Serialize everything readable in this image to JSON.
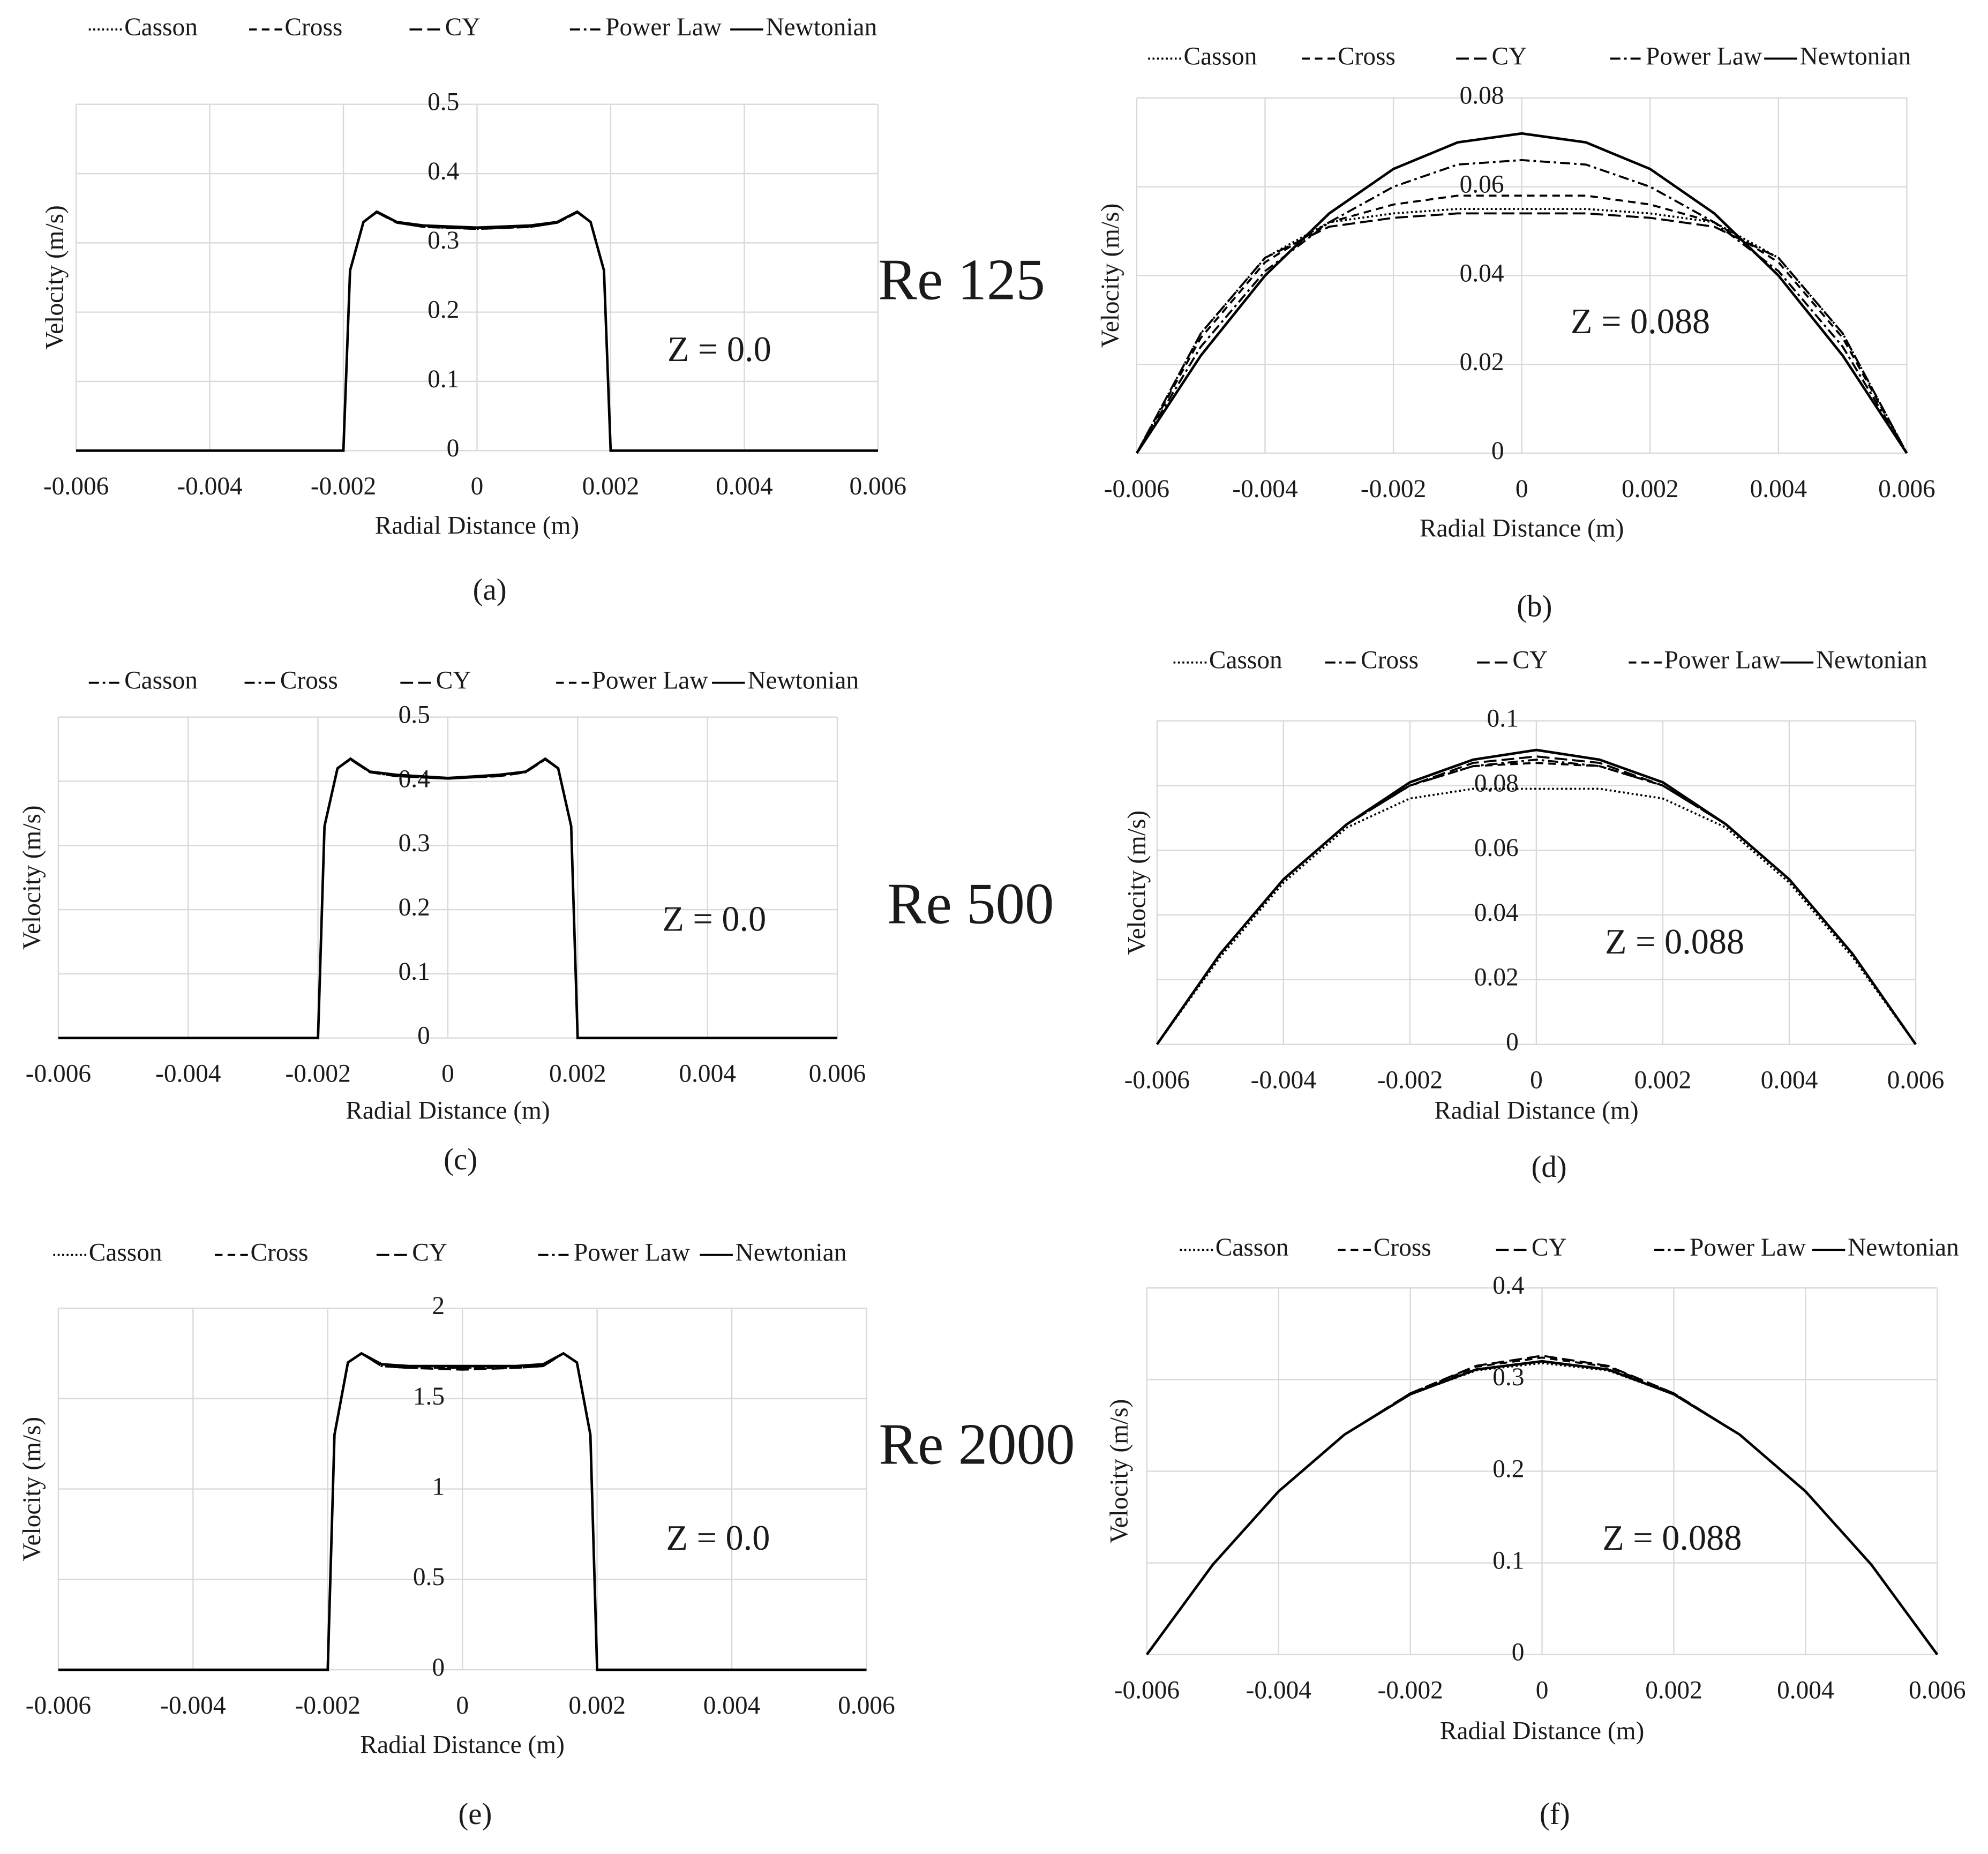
{
  "row_labels": [
    "Re 125",
    "Re 500",
    "Re 2000"
  ],
  "chart_data": [
    {
      "type": "line",
      "caption": "(a)",
      "annotation": "Z = 0.0",
      "x_label": "Radial Distance (m)",
      "y_label": "Velocity (m/s)",
      "x": [
        -0.006,
        -0.002,
        -0.0019,
        -0.0017,
        -0.0015,
        -0.0012,
        -0.0008,
        0,
        0.0008,
        0.0012,
        0.0015,
        0.0017,
        0.0019,
        0.002,
        0.006
      ],
      "series": [
        {
          "name": "Casson",
          "color": "#000000",
          "dash": "dotted",
          "values": [
            0,
            0,
            0.26,
            0.33,
            0.344,
            0.329,
            0.323,
            0.32,
            0.323,
            0.329,
            0.344,
            0.33,
            0.26,
            0,
            0
          ]
        },
        {
          "name": "Cross",
          "color": "#000000",
          "dash": "dashed",
          "values": [
            0,
            0,
            0.26,
            0.33,
            0.344,
            0.329,
            0.323,
            0.321,
            0.323,
            0.329,
            0.344,
            0.33,
            0.26,
            0,
            0
          ]
        },
        {
          "name": "CY",
          "color": "#000000",
          "dash": "longdash",
          "values": [
            0,
            0,
            0.26,
            0.33,
            0.344,
            0.329,
            0.323,
            0.32,
            0.323,
            0.329,
            0.344,
            0.33,
            0.26,
            0,
            0
          ]
        },
        {
          "name": "Power Law",
          "color": "#000000",
          "dash": "dashdot",
          "values": [
            0,
            0,
            0.26,
            0.33,
            0.345,
            0.33,
            0.324,
            0.321,
            0.324,
            0.33,
            0.345,
            0.33,
            0.26,
            0,
            0
          ]
        },
        {
          "name": "Newtonian",
          "color": "#000000",
          "dash": "solid",
          "values": [
            0,
            0,
            0.26,
            0.33,
            0.345,
            0.33,
            0.325,
            0.322,
            0.325,
            0.33,
            0.345,
            0.33,
            0.26,
            0,
            0
          ]
        }
      ],
      "xlim": [
        -0.006,
        0.006
      ],
      "ylim": [
        0,
        0.5
      ],
      "xticks": [
        -0.006,
        -0.004,
        -0.002,
        0,
        0.002,
        0.004,
        0.006
      ],
      "yticks": [
        0,
        0.1,
        0.2,
        0.3,
        0.4,
        0.5
      ],
      "grid": true
    },
    {
      "type": "line",
      "caption": "(b)",
      "annotation": "Z = 0.088",
      "x_label": "Radial Distance (m)",
      "y_label": "Velocity (m/s)",
      "x": [
        -0.006,
        -0.005,
        -0.004,
        -0.003,
        -0.002,
        -0.001,
        0,
        0.001,
        0.002,
        0.003,
        0.004,
        0.005,
        0.006
      ],
      "series": [
        {
          "name": "Casson",
          "color": "#000000",
          "dash": "dotted",
          "values": [
            0,
            0.027,
            0.044,
            0.052,
            0.054,
            0.055,
            0.055,
            0.055,
            0.054,
            0.052,
            0.044,
            0.027,
            0
          ]
        },
        {
          "name": "Cross",
          "color": "#000000",
          "dash": "dashed",
          "values": [
            0,
            0.026,
            0.043,
            0.052,
            0.056,
            0.058,
            0.058,
            0.058,
            0.056,
            0.052,
            0.043,
            0.026,
            0
          ]
        },
        {
          "name": "CY",
          "color": "#000000",
          "dash": "longdash",
          "values": [
            0,
            0.027,
            0.044,
            0.051,
            0.053,
            0.054,
            0.054,
            0.054,
            0.053,
            0.051,
            0.044,
            0.027,
            0
          ]
        },
        {
          "name": "Power Law",
          "color": "#000000",
          "dash": "dashdot",
          "values": [
            0,
            0.024,
            0.041,
            0.052,
            0.06,
            0.065,
            0.066,
            0.065,
            0.06,
            0.052,
            0.041,
            0.024,
            0
          ]
        },
        {
          "name": "Newtonian",
          "color": "#000000",
          "dash": "solid",
          "values": [
            0,
            0.022,
            0.04,
            0.054,
            0.064,
            0.07,
            0.072,
            0.07,
            0.064,
            0.054,
            0.04,
            0.022,
            0
          ]
        }
      ],
      "xlim": [
        -0.006,
        0.006
      ],
      "ylim": [
        0,
        0.08
      ],
      "xticks": [
        -0.006,
        -0.004,
        -0.002,
        0,
        0.002,
        0.004,
        0.006
      ],
      "yticks": [
        0,
        0.02,
        0.04,
        0.06,
        0.08
      ],
      "grid": true
    },
    {
      "type": "line",
      "caption": "(c)",
      "annotation": "Z = 0.0",
      "x_label": "Radial Distance (m)",
      "y_label": "Velocity (m/s)",
      "x": [
        -0.006,
        -0.002,
        -0.0019,
        -0.0017,
        -0.0015,
        -0.0012,
        -0.0008,
        0,
        0.0008,
        0.0012,
        0.0015,
        0.0017,
        0.0019,
        0.002,
        0.006
      ],
      "series": [
        {
          "name": "Casson",
          "color": "#000000",
          "dash": "dashdot",
          "values": [
            0,
            0,
            0.33,
            0.42,
            0.434,
            0.414,
            0.408,
            0.404,
            0.408,
            0.414,
            0.434,
            0.42,
            0.33,
            0,
            0
          ]
        },
        {
          "name": "Cross",
          "color": "#000000",
          "dash": "dashdot",
          "values": [
            0,
            0,
            0.33,
            0.42,
            0.434,
            0.414,
            0.409,
            0.404,
            0.409,
            0.414,
            0.434,
            0.42,
            0.33,
            0,
            0
          ]
        },
        {
          "name": "CY",
          "color": "#000000",
          "dash": "longdash",
          "values": [
            0,
            0,
            0.33,
            0.42,
            0.434,
            0.414,
            0.408,
            0.404,
            0.408,
            0.414,
            0.434,
            0.42,
            0.33,
            0,
            0
          ]
        },
        {
          "name": "Power Law",
          "color": "#000000",
          "dash": "dashed",
          "values": [
            0,
            0,
            0.33,
            0.42,
            0.435,
            0.415,
            0.409,
            0.405,
            0.409,
            0.415,
            0.435,
            0.42,
            0.33,
            0,
            0
          ]
        },
        {
          "name": "Newtonian",
          "color": "#000000",
          "dash": "solid",
          "values": [
            0,
            0,
            0.33,
            0.42,
            0.435,
            0.415,
            0.41,
            0.405,
            0.41,
            0.415,
            0.435,
            0.42,
            0.33,
            0,
            0
          ]
        }
      ],
      "xlim": [
        -0.006,
        0.006
      ],
      "ylim": [
        0,
        0.5
      ],
      "xticks": [
        -0.006,
        -0.004,
        -0.002,
        0,
        0.002,
        0.004,
        0.006
      ],
      "yticks": [
        0,
        0.1,
        0.2,
        0.3,
        0.4,
        0.5
      ],
      "grid": true
    },
    {
      "type": "line",
      "caption": "(d)",
      "annotation": "Z = 0.088",
      "x_label": "Radial Distance (m)",
      "y_label": "Velocity (m/s)",
      "x": [
        -0.006,
        -0.005,
        -0.004,
        -0.003,
        -0.002,
        -0.001,
        0,
        0.001,
        0.002,
        0.003,
        0.004,
        0.005,
        0.006
      ],
      "series": [
        {
          "name": "Casson",
          "color": "#000000",
          "dash": "dotted",
          "values": [
            0,
            0.027,
            0.05,
            0.067,
            0.076,
            0.079,
            0.079,
            0.079,
            0.076,
            0.067,
            0.05,
            0.027,
            0
          ]
        },
        {
          "name": "Cross",
          "color": "#000000",
          "dash": "dashdot",
          "values": [
            0,
            0.028,
            0.051,
            0.068,
            0.08,
            0.086,
            0.088,
            0.086,
            0.08,
            0.068,
            0.051,
            0.028,
            0
          ]
        },
        {
          "name": "CY",
          "color": "#000000",
          "dash": "longdash",
          "values": [
            0,
            0.028,
            0.051,
            0.068,
            0.08,
            0.087,
            0.089,
            0.087,
            0.08,
            0.068,
            0.051,
            0.028,
            0
          ]
        },
        {
          "name": "Power Law",
          "color": "#000000",
          "dash": "dashed",
          "values": [
            0,
            0.028,
            0.051,
            0.068,
            0.08,
            0.086,
            0.087,
            0.086,
            0.08,
            0.068,
            0.051,
            0.028,
            0
          ]
        },
        {
          "name": "Newtonian",
          "color": "#000000",
          "dash": "solid",
          "values": [
            0,
            0.028,
            0.051,
            0.068,
            0.081,
            0.088,
            0.091,
            0.088,
            0.081,
            0.068,
            0.051,
            0.028,
            0
          ]
        }
      ],
      "xlim": [
        -0.006,
        0.006
      ],
      "ylim": [
        0,
        0.1
      ],
      "xticks": [
        -0.006,
        -0.004,
        -0.002,
        0,
        0.002,
        0.004,
        0.006
      ],
      "yticks": [
        0,
        0.02,
        0.04,
        0.06,
        0.08,
        0.1
      ],
      "grid": true
    },
    {
      "type": "line",
      "caption": "(e)",
      "annotation": "Z = 0.0",
      "x_label": "Radial Distance (m)",
      "y_label": "Velocity (m/s)",
      "x": [
        -0.006,
        -0.002,
        -0.0019,
        -0.0017,
        -0.0015,
        -0.0012,
        -0.0008,
        0,
        0.0008,
        0.0012,
        0.0015,
        0.0017,
        0.0019,
        0.002,
        0.006
      ],
      "series": [
        {
          "name": "Casson",
          "color": "#000000",
          "dash": "dotted",
          "values": [
            0,
            0,
            1.3,
            1.7,
            1.75,
            1.68,
            1.67,
            1.67,
            1.67,
            1.68,
            1.75,
            1.7,
            1.3,
            0,
            0
          ]
        },
        {
          "name": "Cross",
          "color": "#000000",
          "dash": "dashed",
          "values": [
            0,
            0,
            1.3,
            1.7,
            1.75,
            1.68,
            1.67,
            1.67,
            1.67,
            1.68,
            1.75,
            1.7,
            1.3,
            0,
            0
          ]
        },
        {
          "name": "CY",
          "color": "#000000",
          "dash": "longdash",
          "values": [
            0,
            0,
            1.3,
            1.7,
            1.75,
            1.68,
            1.67,
            1.66,
            1.67,
            1.68,
            1.75,
            1.7,
            1.3,
            0,
            0
          ]
        },
        {
          "name": "Power Law",
          "color": "#000000",
          "dash": "dashdot",
          "values": [
            0,
            0,
            1.3,
            1.7,
            1.75,
            1.69,
            1.68,
            1.67,
            1.68,
            1.69,
            1.75,
            1.7,
            1.3,
            0,
            0
          ]
        },
        {
          "name": "Newtonian",
          "color": "#000000",
          "dash": "solid",
          "values": [
            0,
            0,
            1.3,
            1.7,
            1.75,
            1.69,
            1.68,
            1.68,
            1.68,
            1.69,
            1.75,
            1.7,
            1.3,
            0,
            0
          ]
        }
      ],
      "xlim": [
        -0.006,
        0.006
      ],
      "ylim": [
        0,
        2
      ],
      "xticks": [
        -0.006,
        -0.004,
        -0.002,
        0,
        0.002,
        0.004,
        0.006
      ],
      "yticks": [
        0,
        0.5,
        1,
        1.5,
        2
      ],
      "grid": true
    },
    {
      "type": "line",
      "caption": "(f)",
      "annotation": "Z = 0.088",
      "x_label": "Radial Distance (m)",
      "y_label": "Velocity (m/s)",
      "x": [
        -0.006,
        -0.005,
        -0.004,
        -0.003,
        -0.002,
        -0.001,
        0,
        0.001,
        0.002,
        0.003,
        0.004,
        0.005,
        0.006
      ],
      "series": [
        {
          "name": "Casson",
          "color": "#000000",
          "dash": "dotted",
          "values": [
            0,
            0.098,
            0.178,
            0.24,
            0.284,
            0.31,
            0.318,
            0.31,
            0.284,
            0.24,
            0.178,
            0.098,
            0
          ]
        },
        {
          "name": "Cross",
          "color": "#000000",
          "dash": "dashed",
          "values": [
            0,
            0.098,
            0.178,
            0.24,
            0.285,
            0.314,
            0.324,
            0.314,
            0.285,
            0.24,
            0.178,
            0.098,
            0
          ]
        },
        {
          "name": "CY",
          "color": "#000000",
          "dash": "longdash",
          "values": [
            0,
            0.098,
            0.178,
            0.24,
            0.285,
            0.315,
            0.326,
            0.315,
            0.285,
            0.24,
            0.178,
            0.098,
            0
          ]
        },
        {
          "name": "Power Law",
          "color": "#000000",
          "dash": "dashdot",
          "values": [
            0,
            0.098,
            0.178,
            0.24,
            0.284,
            0.311,
            0.32,
            0.311,
            0.284,
            0.24,
            0.178,
            0.098,
            0
          ]
        },
        {
          "name": "Newtonian",
          "color": "#000000",
          "dash": "solid",
          "values": [
            0,
            0.098,
            0.178,
            0.24,
            0.284,
            0.311,
            0.32,
            0.311,
            0.284,
            0.24,
            0.178,
            0.098,
            0
          ]
        }
      ],
      "xlim": [
        -0.006,
        0.006
      ],
      "ylim": [
        0,
        0.4
      ],
      "xticks": [
        -0.006,
        -0.004,
        -0.002,
        0,
        0.002,
        0.004,
        0.006
      ],
      "yticks": [
        0,
        0.1,
        0.2,
        0.3,
        0.4
      ],
      "grid": true
    }
  ]
}
